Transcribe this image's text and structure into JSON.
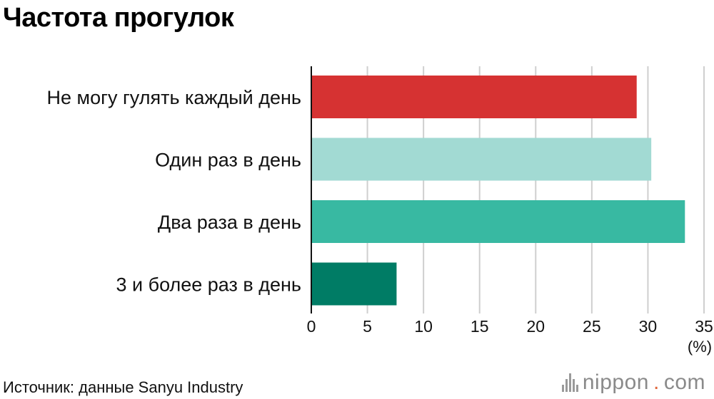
{
  "page": {
    "title": "Частота прогулок",
    "source": "Источник: данные Sanyu Industry",
    "brand": {
      "name": "nippon",
      "dot": ".",
      "tld": "com"
    }
  },
  "chart_data": {
    "type": "bar",
    "orientation": "horizontal",
    "title": "Частота прогулок",
    "categories": [
      "Не могу гулять каждый день",
      "Один раз в день",
      "Два раза в день",
      "3 и более раз в день"
    ],
    "values": [
      29.0,
      30.3,
      33.3,
      7.6
    ],
    "colors": [
      "#d63232",
      "#a2dad3",
      "#38b9a2",
      "#007c65"
    ],
    "xlim": [
      0,
      35
    ],
    "xticks": [
      0,
      5,
      10,
      15,
      20,
      25,
      30,
      35
    ],
    "xunit": "(%)",
    "grid": "vertical",
    "legend": "none"
  }
}
